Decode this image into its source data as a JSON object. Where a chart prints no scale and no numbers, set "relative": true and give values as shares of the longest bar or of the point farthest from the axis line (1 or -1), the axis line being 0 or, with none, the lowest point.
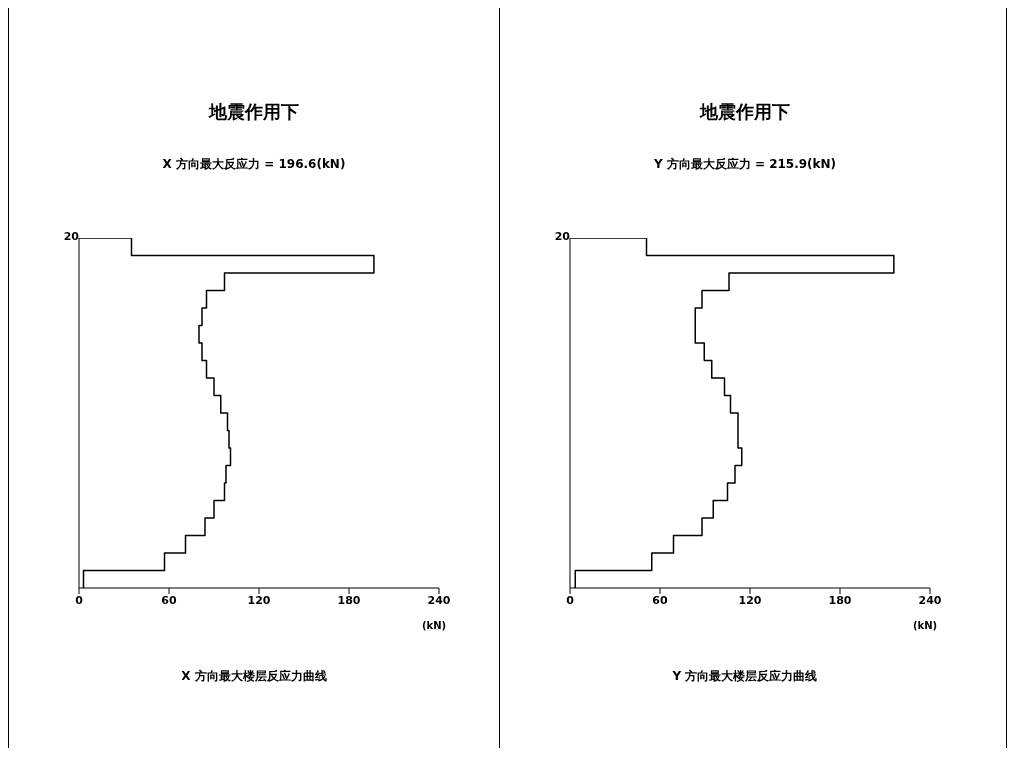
{
  "chart_data": [
    {
      "type": "line",
      "title": "地震作用下",
      "subtitle": "X 方向最大反应力 = 196.6(kN)",
      "xlabel": "(kN)",
      "annotations": [
        "20",
        "X 方向最大楼层反应力曲线"
      ],
      "xlim": [
        0,
        240
      ],
      "xticks": [
        0,
        60,
        120,
        180,
        240
      ],
      "relative": true,
      "marker": "none",
      "line_style": "solid",
      "series": [
        {
          "color": "#000000",
          "x": [
            0,
            35,
            35,
            196.6,
            196.6,
            97,
            97,
            85,
            85,
            82,
            82,
            80,
            80,
            82,
            82,
            85,
            85,
            90,
            90,
            94.5,
            94.5,
            99,
            99,
            100,
            100,
            101,
            101,
            98,
            98,
            97,
            97,
            90,
            90,
            84,
            84,
            71,
            71,
            57,
            57,
            3,
            3
          ],
          "values": [
            1,
            1,
            0.95,
            0.95,
            0.9,
            0.9,
            0.85,
            0.85,
            0.8,
            0.8,
            0.75,
            0.75,
            0.7,
            0.7,
            0.65,
            0.65,
            0.6,
            0.6,
            0.55,
            0.55,
            0.5,
            0.5,
            0.45,
            0.45,
            0.4,
            0.4,
            0.35,
            0.35,
            0.3,
            0.3,
            0.25,
            0.25,
            0.2,
            0.2,
            0.15,
            0.15,
            0.1,
            0.1,
            0.05,
            0.05,
            0
          ]
        }
      ]
    },
    {
      "type": "line",
      "title": "地震作用下",
      "subtitle": "Y 方向最大反应力 = 215.9(kN)",
      "xlabel": "(kN)",
      "annotations": [
        "20",
        "Y 方向最大楼层反应力曲线"
      ],
      "xlim": [
        0,
        240
      ],
      "xticks": [
        0,
        60,
        120,
        180,
        240
      ],
      "relative": true,
      "marker": "none",
      "line_style": "solid",
      "series": [
        {
          "color": "#000000",
          "x": [
            0,
            51,
            51,
            215.9,
            215.9,
            106,
            106,
            88,
            88,
            83.5,
            83.5,
            89.5,
            89.5,
            94.5,
            94.5,
            103,
            103,
            107,
            107,
            112,
            112,
            114.5,
            114.5,
            110,
            110,
            105,
            105,
            95.5,
            95.5,
            88,
            88,
            69,
            69,
            54.5,
            54.5,
            3.5,
            3.5
          ],
          "values": [
            1,
            1,
            0.95,
            0.95,
            0.9,
            0.9,
            0.85,
            0.85,
            0.8,
            0.8,
            0.7,
            0.7,
            0.65,
            0.65,
            0.6,
            0.6,
            0.55,
            0.55,
            0.5,
            0.5,
            0.4,
            0.4,
            0.35,
            0.35,
            0.3,
            0.3,
            0.25,
            0.25,
            0.2,
            0.2,
            0.15,
            0.15,
            0.1,
            0.1,
            0.05,
            0.05,
            0
          ]
        }
      ]
    }
  ]
}
